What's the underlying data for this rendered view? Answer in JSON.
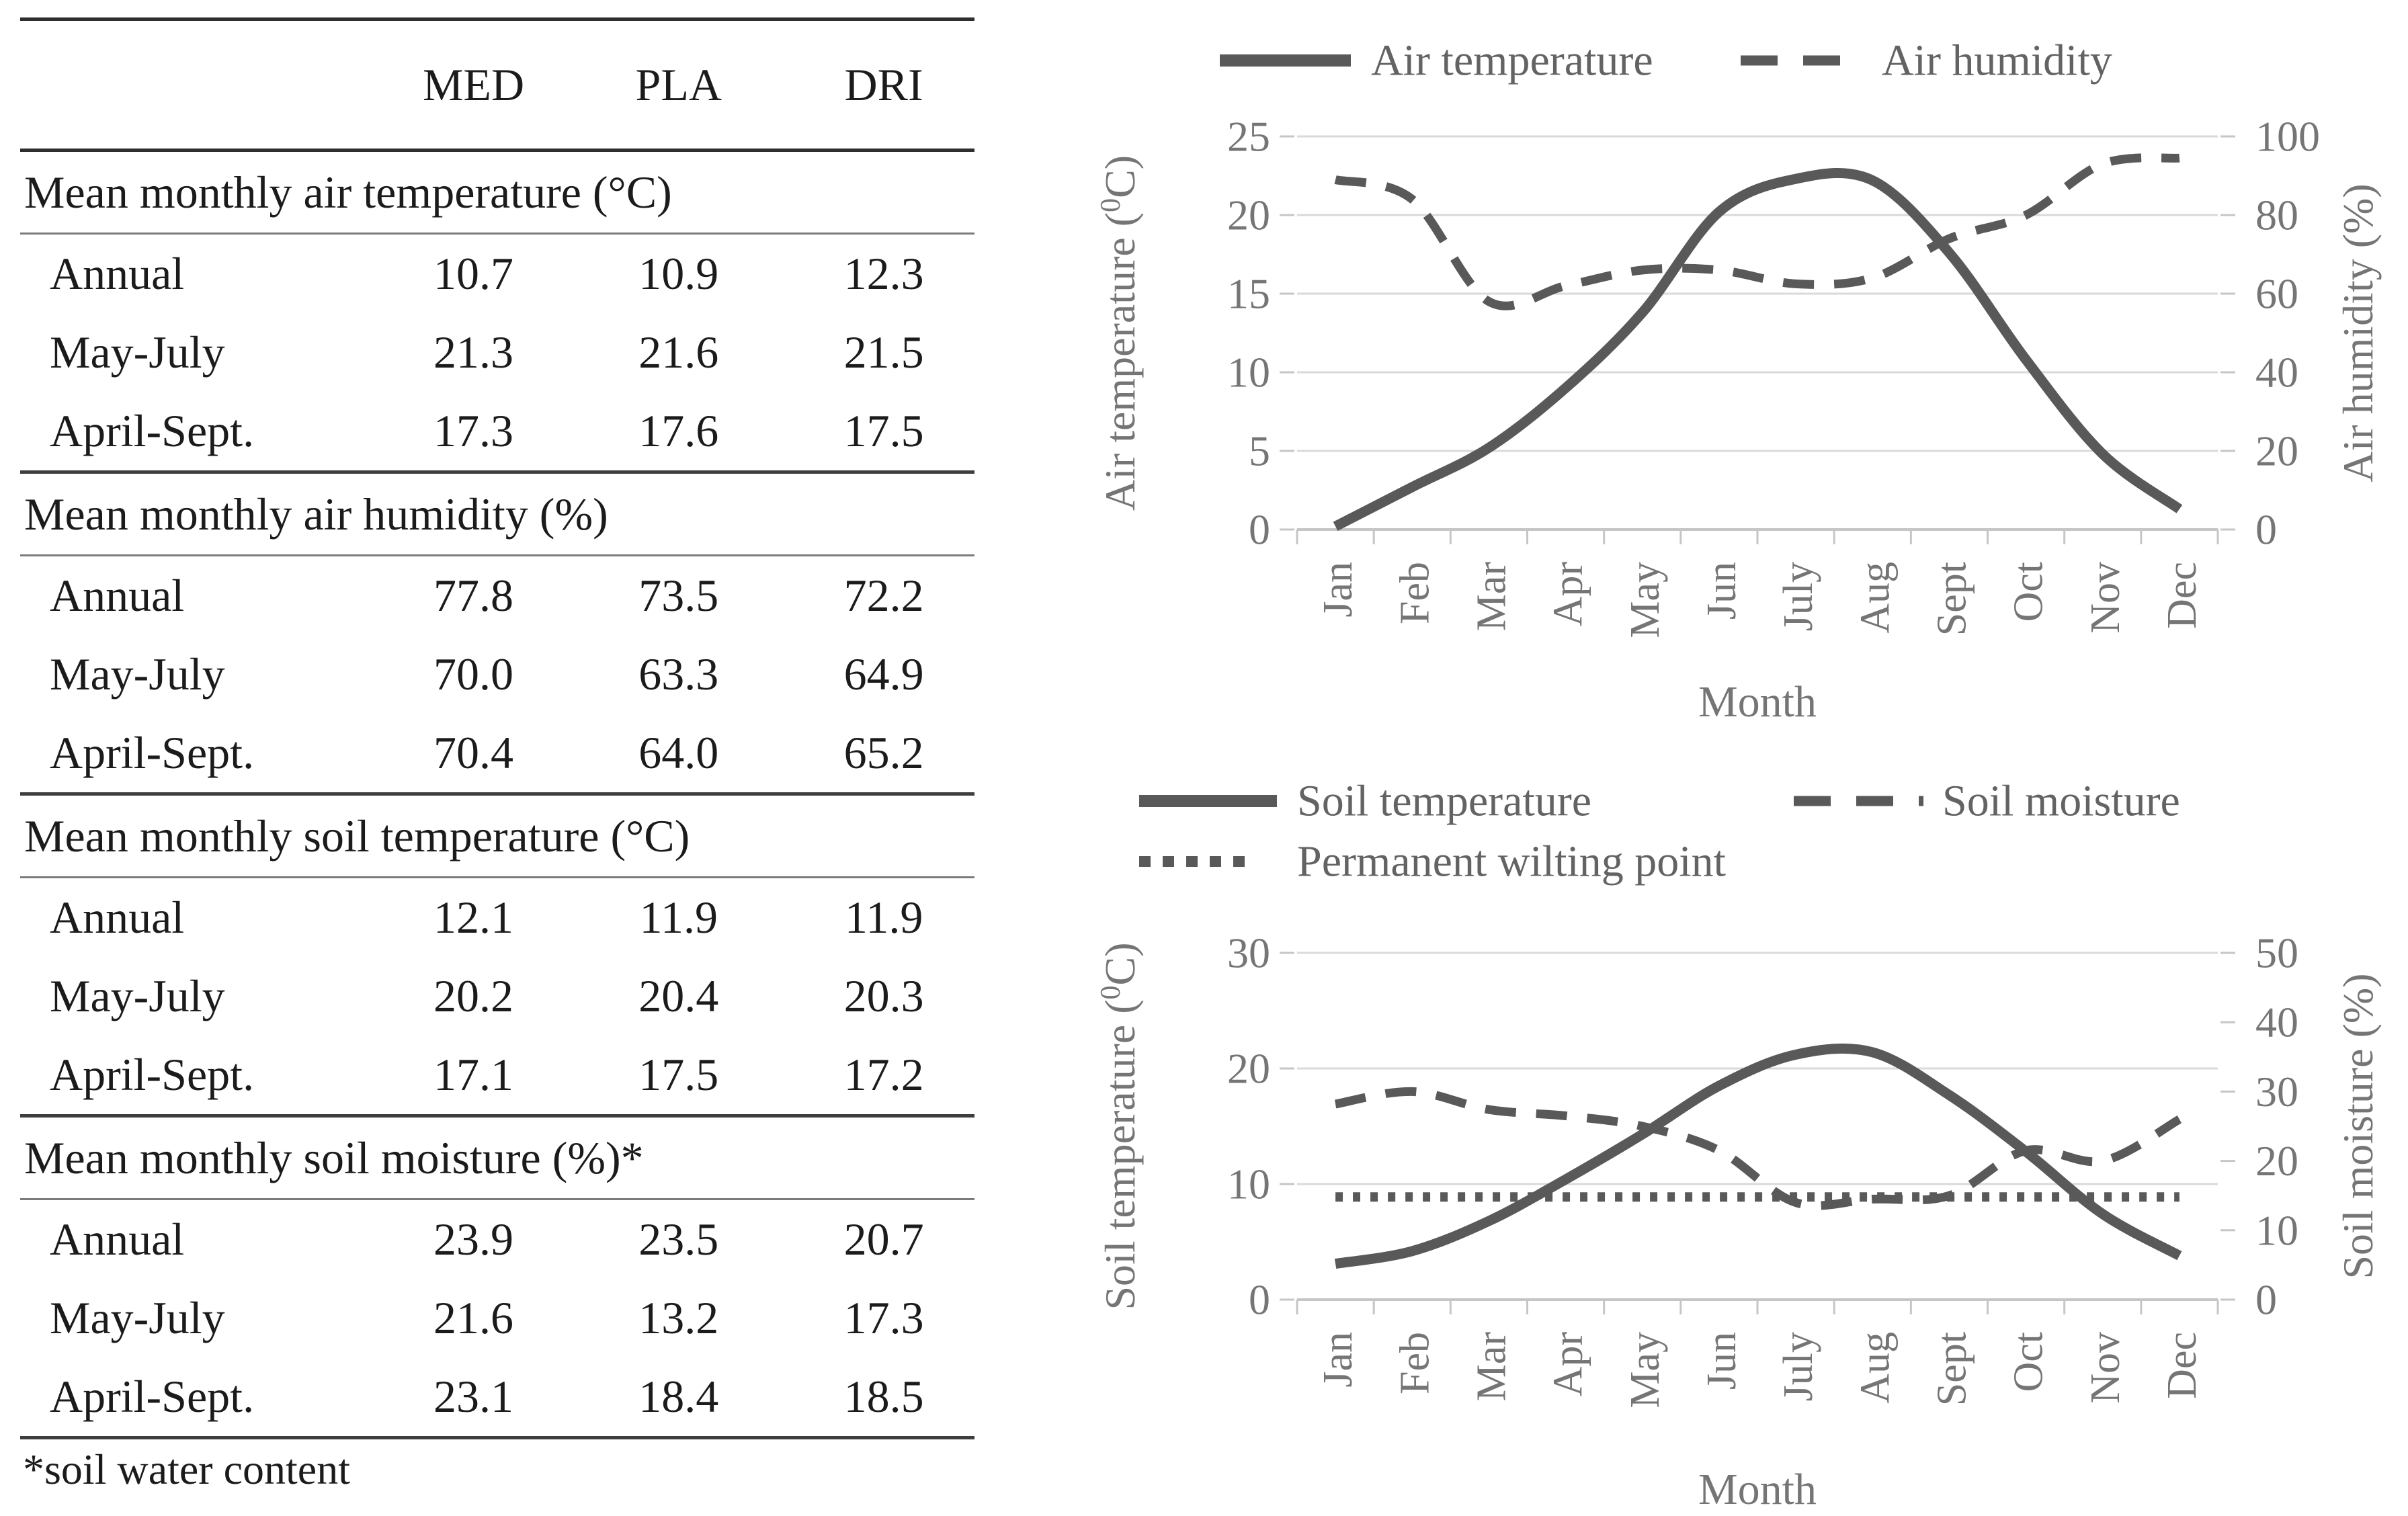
{
  "table": {
    "columns": [
      "MED",
      "PLA",
      "DRI"
    ],
    "sections": [
      {
        "header": "Mean monthly air temperature (°C)",
        "rows": [
          {
            "label": "Annual",
            "values": [
              "10.7",
              "10.9",
              "12.3"
            ]
          },
          {
            "label": "May-July",
            "values": [
              "21.3",
              "21.6",
              "21.5"
            ]
          },
          {
            "label": "April-Sept.",
            "values": [
              "17.3",
              "17.6",
              "17.5"
            ]
          }
        ]
      },
      {
        "header": "Mean monthly air humidity (%)",
        "rows": [
          {
            "label": "Annual",
            "values": [
              "77.8",
              "73.5",
              "72.2"
            ]
          },
          {
            "label": "May-July",
            "values": [
              "70.0",
              "63.3",
              "64.9"
            ]
          },
          {
            "label": "April-Sept.",
            "values": [
              "70.4",
              "64.0",
              "65.2"
            ]
          }
        ]
      },
      {
        "header": "Mean monthly soil temperature (°C)",
        "rows": [
          {
            "label": "Annual",
            "values": [
              "12.1",
              "11.9",
              "11.9"
            ]
          },
          {
            "label": "May-July",
            "values": [
              "20.2",
              "20.4",
              "20.3"
            ]
          },
          {
            "label": "April-Sept.",
            "values": [
              "17.1",
              "17.5",
              "17.2"
            ]
          }
        ]
      },
      {
        "header": "Mean monthly soil moisture (%)*",
        "rows": [
          {
            "label": "Annual",
            "values": [
              "23.9",
              "23.5",
              "20.7"
            ]
          },
          {
            "label": "May-July",
            "values": [
              "21.6",
              "13.2",
              "17.3"
            ]
          },
          {
            "label": "April-Sept.",
            "values": [
              "23.1",
              "18.4",
              "18.5"
            ]
          }
        ]
      }
    ],
    "footnote": "*soil water content"
  },
  "colors": {
    "series_line": "#595959",
    "gridline": "#dadada",
    "baseline": "#c6c6c6",
    "tick": "#c6c6c6",
    "axis_text": "#757575",
    "legend_text": "#636363",
    "table_text": "#1b1b1b",
    "background": "#ffffff"
  },
  "chart_data": [
    {
      "type": "line",
      "title": "",
      "x_axis_label": "Month",
      "categories": [
        "Jan",
        "Feb",
        "Mar",
        "Apr",
        "May",
        "Jun",
        "July",
        "Aug",
        "Sept",
        "Oct",
        "Nov",
        "Dec"
      ],
      "grid": "horizontal",
      "legend_position": "top",
      "left_axis": {
        "label_pre": "Air temperature (",
        "label_sup": "0",
        "label_post": "C)",
        "ticks": [
          25,
          20,
          15,
          10,
          5,
          0
        ],
        "min": 0,
        "max": 25
      },
      "right_axis": {
        "label_pre": "Air humidity (%)",
        "label_sup": "",
        "label_post": "",
        "ticks": [
          100,
          80,
          60,
          40,
          20,
          0
        ],
        "min": 0,
        "max": 100
      },
      "series": [
        {
          "name": "Air temperature",
          "axis": "left",
          "style": "solid",
          "values": [
            0.2,
            2.7,
            5.2,
            9.0,
            13.8,
            20.2,
            22.3,
            22.2,
            17.6,
            10.8,
            4.8,
            1.3
          ]
        },
        {
          "name": "Air humidity",
          "axis": "right",
          "style": "dashed",
          "values": [
            89,
            84,
            58,
            62,
            66,
            66,
            62.5,
            64,
            74,
            80,
            93,
            94.5
          ]
        }
      ]
    },
    {
      "type": "line",
      "title": "",
      "x_axis_label": "Month",
      "categories": [
        "Jan",
        "Feb",
        "Mar",
        "Apr",
        "May",
        "Jun",
        "July",
        "Aug",
        "Sept",
        "Oct",
        "Nov",
        "Dec"
      ],
      "grid": "horizontal",
      "legend_position": "top",
      "left_axis": {
        "label_pre": "Soil temperature (",
        "label_sup": "0",
        "label_post": "C)",
        "ticks": [
          30,
          20,
          10,
          0
        ],
        "min": 0,
        "max": 30
      },
      "right_axis": {
        "label_pre": "Soil moisture (%)",
        "label_sup": "",
        "label_post": "",
        "ticks": [
          50,
          40,
          30,
          20,
          10,
          0
        ],
        "min": 0,
        "max": 50
      },
      "series": [
        {
          "name": "Soil temperature",
          "axis": "left",
          "style": "solid",
          "values": [
            3.1,
            4.2,
            6.8,
            10.4,
            14.3,
            18.5,
            21.2,
            21.4,
            17.7,
            12.8,
            7.4,
            3.8
          ]
        },
        {
          "name": "Soil moisture",
          "axis": "right",
          "style": "dashed",
          "values": [
            28.2,
            30.0,
            27.4,
            26.5,
            25.0,
            21.5,
            14.0,
            14.5,
            15.0,
            21.5,
            20.0,
            26.0
          ]
        },
        {
          "name": "Permanent wilting point",
          "axis": "right",
          "style": "dotted",
          "values": [
            14.8,
            14.8,
            14.8,
            14.8,
            14.8,
            14.8,
            14.8,
            14.8,
            14.8,
            14.8,
            14.8,
            14.8
          ]
        }
      ]
    }
  ]
}
